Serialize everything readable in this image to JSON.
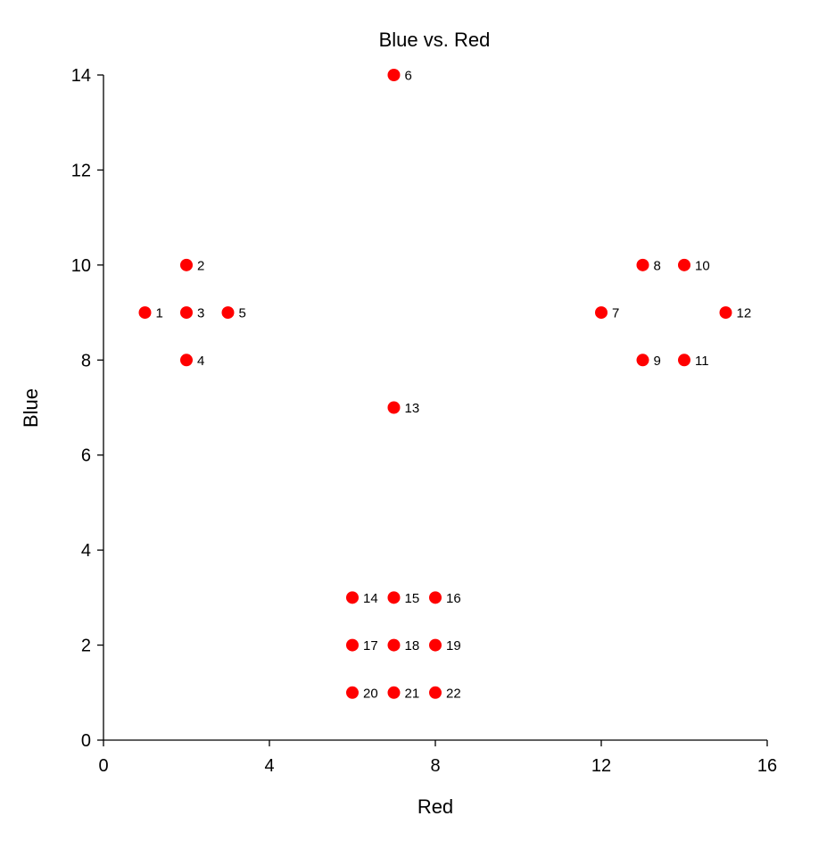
{
  "chart_data": {
    "type": "scatter",
    "title": "Blue vs. Red",
    "xlabel": "Red",
    "ylabel": "Blue",
    "xlim": [
      0,
      16
    ],
    "ylim": [
      0,
      14
    ],
    "xticks": [
      "0",
      "4",
      "8",
      "12",
      "16"
    ],
    "yticks": [
      "0",
      "2",
      "4",
      "6",
      "8",
      "10",
      "12",
      "14"
    ],
    "grid": false,
    "marker_color": "#ff0000",
    "points": [
      {
        "label": "1",
        "x": 1,
        "y": 9
      },
      {
        "label": "2",
        "x": 2,
        "y": 10
      },
      {
        "label": "3",
        "x": 2,
        "y": 9
      },
      {
        "label": "4",
        "x": 2,
        "y": 8
      },
      {
        "label": "5",
        "x": 3,
        "y": 9
      },
      {
        "label": "6",
        "x": 7,
        "y": 14
      },
      {
        "label": "7",
        "x": 12,
        "y": 9
      },
      {
        "label": "8",
        "x": 13,
        "y": 10
      },
      {
        "label": "9",
        "x": 13,
        "y": 8
      },
      {
        "label": "10",
        "x": 14,
        "y": 10
      },
      {
        "label": "11",
        "x": 14,
        "y": 8
      },
      {
        "label": "12",
        "x": 15,
        "y": 9
      },
      {
        "label": "13",
        "x": 7,
        "y": 7
      },
      {
        "label": "14",
        "x": 6,
        "y": 3
      },
      {
        "label": "15",
        "x": 7,
        "y": 3
      },
      {
        "label": "16",
        "x": 8,
        "y": 3
      },
      {
        "label": "17",
        "x": 6,
        "y": 2
      },
      {
        "label": "18",
        "x": 7,
        "y": 2
      },
      {
        "label": "19",
        "x": 8,
        "y": 2
      },
      {
        "label": "20",
        "x": 6,
        "y": 1
      },
      {
        "label": "21",
        "x": 7,
        "y": 1
      },
      {
        "label": "22",
        "x": 8,
        "y": 1
      }
    ]
  }
}
